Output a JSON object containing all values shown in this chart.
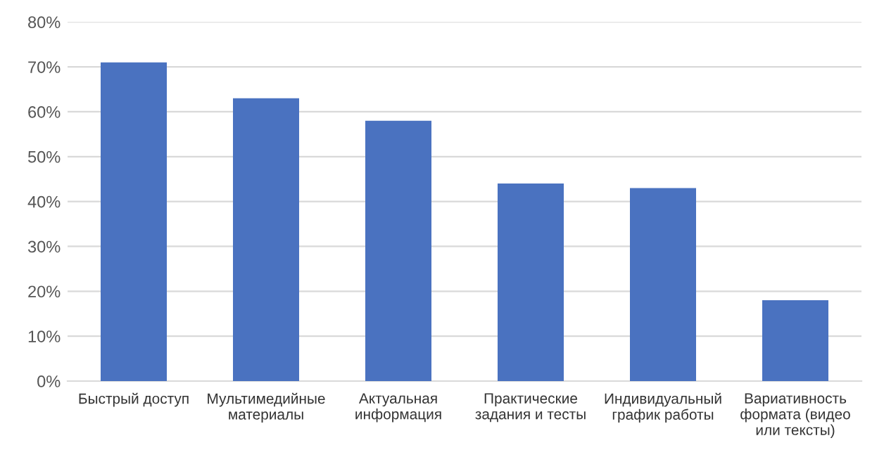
{
  "chart_data": {
    "type": "bar",
    "categories": [
      "Быстрый доступ",
      "Мультимедийные\nматериалы",
      "Актуальная\nинформация",
      "Практические\nзадания и тесты",
      "Индивидуальный\nграфик работы",
      "Вариативность\nформата (видео\nили тексты)"
    ],
    "values": [
      71,
      63,
      58,
      44,
      43,
      18
    ],
    "color": "#4a72c0",
    "ylim": [
      0,
      80
    ],
    "yticks": [
      {
        "value": 0,
        "label": "0%"
      },
      {
        "value": 10,
        "label": "10%"
      },
      {
        "value": 20,
        "label": "20%"
      },
      {
        "value": 30,
        "label": "30%"
      },
      {
        "value": 40,
        "label": "40%"
      },
      {
        "value": 50,
        "label": "50%"
      },
      {
        "value": 60,
        "label": "60%"
      },
      {
        "value": 70,
        "label": "70%"
      },
      {
        "value": 80,
        "label": "80%"
      }
    ],
    "grid": "y"
  }
}
